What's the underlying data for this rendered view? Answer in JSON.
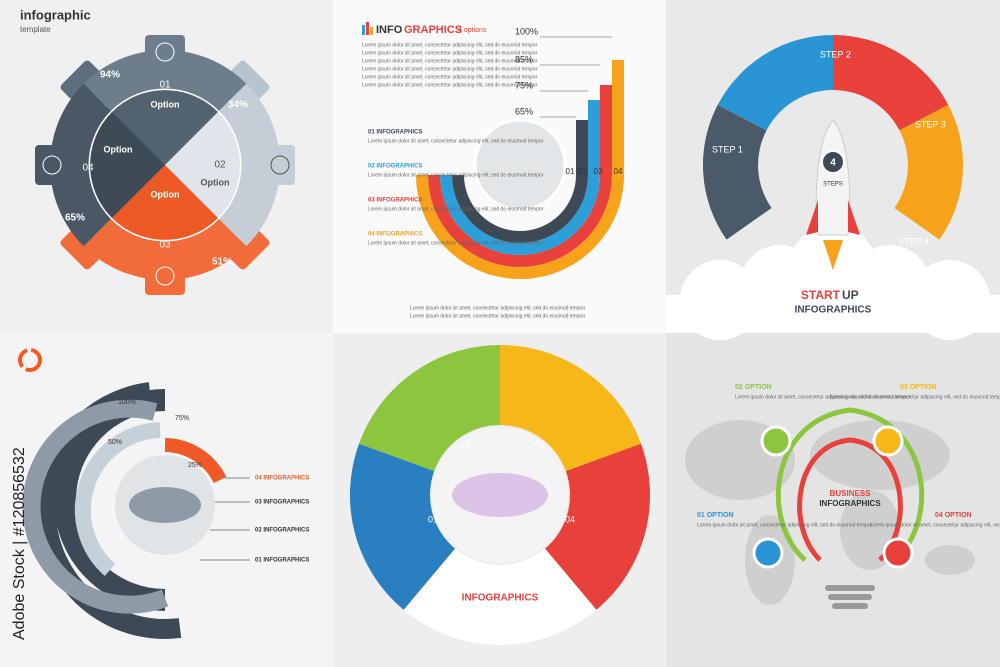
{
  "lorem": "Lorem ipsum dolor sit amet, consectetur adipiscing elit, sed do eiusmod tempor",
  "watermark": "Adobe Stock | #120856532",
  "gear": {
    "title": "infographic",
    "subtitle": "template",
    "numbers": [
      "01",
      "02",
      "03",
      "04"
    ],
    "percents": [
      "94%",
      "34%",
      "65%",
      "51%"
    ],
    "option": "Option"
  },
  "bars": {
    "title_a": "INFO",
    "title_b": "GRAPHICS",
    "options": "4 options",
    "percents": [
      "100%",
      "85%",
      "75%",
      "65%"
    ],
    "numbers": [
      "01",
      "02",
      "03",
      "04"
    ],
    "items": [
      "01 INFOGRAPHICS",
      "02 INFOGRAPHICS",
      "03 INFOGRAPHICS",
      "04 INFOGRAPHICS"
    ]
  },
  "rocket": {
    "steps": [
      "STEP 1",
      "STEP 2",
      "STEP 3",
      "STEP 4"
    ],
    "count": "4",
    "count_label": "STEPS",
    "title_a": "START",
    "title_b": "UP",
    "subtitle": "INFOGRAPHICS"
  },
  "rings": {
    "percents": [
      "100%",
      "75%",
      "50%",
      "25%"
    ],
    "items": [
      "04 INFOGRAPHICS",
      "03 INFOGRAPHICS",
      "02 INFOGRAPHICS",
      "01 INFOGRAPHICS"
    ]
  },
  "circle": {
    "numbers": [
      "01",
      "02",
      "03",
      "04"
    ],
    "title": "INFOGRAPHICS"
  },
  "bulb": {
    "options": [
      "01 OPTION",
      "02 OPTION",
      "03 OPTION",
      "04 OPTION"
    ],
    "title_a": "BUSINESS",
    "title_b": "INFOGRAPHICS"
  }
}
